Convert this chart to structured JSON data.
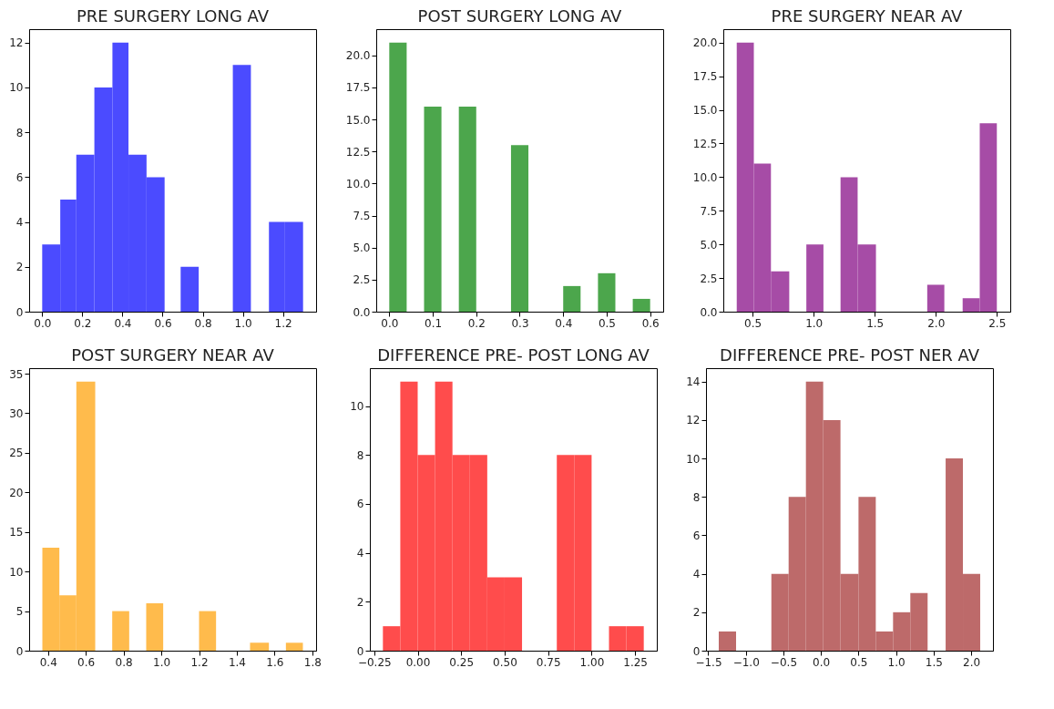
{
  "chart_data": [
    {
      "type": "histogram",
      "title": "PRE SURGERY LONG AV",
      "color": "#4b4bff",
      "bins": [
        0,
        0.09,
        0.17,
        0.26,
        0.35,
        0.43,
        0.52,
        0.61,
        0.69,
        0.78,
        0.95,
        1.04,
        1.13,
        1.21,
        1.3
      ],
      "values": [
        3,
        5,
        7,
        10,
        12,
        7,
        6,
        0,
        2,
        0,
        11,
        0,
        4,
        4
      ],
      "xlim": [
        -0.065,
        1.365
      ],
      "ylim": [
        0,
        12.6
      ],
      "xticks": [
        {
          "value": 0,
          "label": "0.0"
        },
        {
          "value": 0.2,
          "label": "0.2"
        },
        {
          "value": 0.4,
          "label": "0.4"
        },
        {
          "value": 0.6,
          "label": "0.6"
        },
        {
          "value": 0.8,
          "label": "0.8"
        },
        {
          "value": 1,
          "label": "1.0"
        },
        {
          "value": 1.2,
          "label": "1.2"
        }
      ],
      "yticks": [
        0,
        2,
        4,
        6,
        8,
        10,
        12
      ]
    },
    {
      "type": "histogram",
      "title": "POST SURGERY LONG AV",
      "color": "#4ca64c",
      "bins": [
        0,
        0.04,
        0.08,
        0.12,
        0.16,
        0.2,
        0.24,
        0.28,
        0.32,
        0.36,
        0.4,
        0.44,
        0.48,
        0.52,
        0.56,
        0.6
      ],
      "values": [
        21,
        0,
        16,
        0,
        16,
        0,
        0,
        13,
        0,
        0,
        2,
        0,
        3,
        0,
        1
      ],
      "xlim": [
        -0.03,
        0.63
      ],
      "ylim": [
        0,
        22.05
      ],
      "xticks": [
        {
          "value": 0,
          "label": "0.0"
        },
        {
          "value": 0.1,
          "label": "0.1"
        },
        {
          "value": 0.2,
          "label": "0.2"
        },
        {
          "value": 0.3,
          "label": "0.3"
        },
        {
          "value": 0.4,
          "label": "0.4"
        },
        {
          "value": 0.5,
          "label": "0.5"
        },
        {
          "value": 0.6,
          "label": "0.6"
        }
      ],
      "yticks": [
        {
          "value": 0,
          "label": "0.0"
        },
        {
          "value": 2.5,
          "label": "2.5"
        },
        {
          "value": 5,
          "label": "5.0"
        },
        {
          "value": 7.5,
          "label": "7.5"
        },
        {
          "value": 10,
          "label": "10.0"
        },
        {
          "value": 12.5,
          "label": "12.5"
        },
        {
          "value": 15,
          "label": "15.0"
        },
        {
          "value": 17.5,
          "label": "17.5"
        },
        {
          "value": 20,
          "label": "20.0"
        }
      ]
    },
    {
      "type": "histogram",
      "title": "PRE SURGERY NEAR AV",
      "color": "#a64ca6",
      "bins": [
        0.37,
        0.51,
        0.65,
        0.8,
        0.94,
        1.08,
        1.22,
        1.36,
        1.51,
        1.93,
        2.07,
        2.22,
        2.36,
        2.5
      ],
      "values": [
        20,
        11,
        3,
        0,
        5,
        0,
        10,
        5,
        0,
        2,
        0,
        1,
        14
      ],
      "xlim": [
        0.26,
        2.61
      ],
      "ylim": [
        0,
        21
      ],
      "xticks": [
        {
          "value": 0.5,
          "label": "0.5"
        },
        {
          "value": 1,
          "label": "1.0"
        },
        {
          "value": 1.5,
          "label": "1.5"
        },
        {
          "value": 2,
          "label": "2.0"
        },
        {
          "value": 2.5,
          "label": "2.5"
        }
      ],
      "yticks": [
        {
          "value": 0,
          "label": "0.0"
        },
        {
          "value": 2.5,
          "label": "2.5"
        },
        {
          "value": 5,
          "label": "5.0"
        },
        {
          "value": 7.5,
          "label": "7.5"
        },
        {
          "value": 10,
          "label": "10.0"
        },
        {
          "value": 12.5,
          "label": "12.5"
        },
        {
          "value": 15,
          "label": "15.0"
        },
        {
          "value": 17.5,
          "label": "17.5"
        },
        {
          "value": 20,
          "label": "20.0"
        }
      ]
    },
    {
      "type": "histogram",
      "title": "POST SURGERY NEAR AV",
      "color": "#ffbb4c",
      "bins": [
        0.37,
        0.46,
        0.55,
        0.65,
        0.74,
        0.83,
        0.92,
        1.01,
        1.2,
        1.29,
        1.47,
        1.57,
        1.66,
        1.75
      ],
      "values": [
        13,
        7,
        34,
        0,
        5,
        0,
        6,
        0,
        5,
        0,
        1,
        0,
        1
      ],
      "xlim": [
        0.3,
        1.82
      ],
      "ylim": [
        0,
        35.7
      ],
      "xticks": [
        {
          "value": 0.4,
          "label": "0.4"
        },
        {
          "value": 0.6,
          "label": "0.6"
        },
        {
          "value": 0.8,
          "label": "0.8"
        },
        {
          "value": 1,
          "label": "1.0"
        },
        {
          "value": 1.2,
          "label": "1.2"
        },
        {
          "value": 1.4,
          "label": "1.4"
        },
        {
          "value": 1.6,
          "label": "1.6"
        },
        {
          "value": 1.8,
          "label": "1.8"
        }
      ],
      "yticks": [
        0,
        5,
        10,
        15,
        20,
        25,
        30,
        35
      ]
    },
    {
      "type": "histogram",
      "title": "DIFFERENCE PRE- POST LONG AV",
      "color": "#ff4c4c",
      "bins": [
        -0.2,
        -0.1,
        0,
        0.1,
        0.2,
        0.3,
        0.4,
        0.5,
        0.6,
        0.7,
        0.8,
        0.9,
        1,
        1.1,
        1.2,
        1.3
      ],
      "values": [
        1,
        11,
        8,
        11,
        8,
        8,
        3,
        3,
        0,
        0,
        8,
        8,
        0,
        1,
        1
      ],
      "xlim": [
        -0.275,
        1.375
      ],
      "ylim": [
        0,
        11.55
      ],
      "xticks": [
        {
          "value": -0.25,
          "label": "−0.25"
        },
        {
          "value": 0,
          "label": "0.00"
        },
        {
          "value": 0.25,
          "label": "0.25"
        },
        {
          "value": 0.5,
          "label": "0.50"
        },
        {
          "value": 0.75,
          "label": "0.75"
        },
        {
          "value": 1,
          "label": "1.00"
        },
        {
          "value": 1.25,
          "label": "1.25"
        }
      ],
      "yticks": [
        0,
        2,
        4,
        6,
        8,
        10
      ]
    },
    {
      "type": "histogram",
      "title": "DIFFERENCE PRE- POST NER AV",
      "color": "#bd6a6a",
      "bins": [
        -1.36,
        -1.13,
        -0.66,
        -0.43,
        -0.2,
        0.03,
        0.26,
        0.5,
        0.73,
        0.96,
        1.19,
        1.42,
        1.66,
        1.89,
        2.12
      ],
      "values": [
        1,
        0,
        4,
        8,
        14,
        12,
        4,
        8,
        1,
        2,
        3,
        0,
        10,
        4
      ],
      "xlim": [
        -1.53,
        2.29
      ],
      "ylim": [
        0,
        14.7
      ],
      "xticks": [
        {
          "value": -1.5,
          "label": "−1.5"
        },
        {
          "value": -1,
          "label": "−1.0"
        },
        {
          "value": -0.5,
          "label": "−0.5"
        },
        {
          "value": 0,
          "label": "0.0"
        },
        {
          "value": 0.5,
          "label": "0.5"
        },
        {
          "value": 1,
          "label": "1.0"
        },
        {
          "value": 1.5,
          "label": "1.5"
        },
        {
          "value": 2,
          "label": "2.0"
        }
      ],
      "yticks": [
        0,
        2,
        4,
        6,
        8,
        10,
        12,
        14
      ]
    }
  ]
}
